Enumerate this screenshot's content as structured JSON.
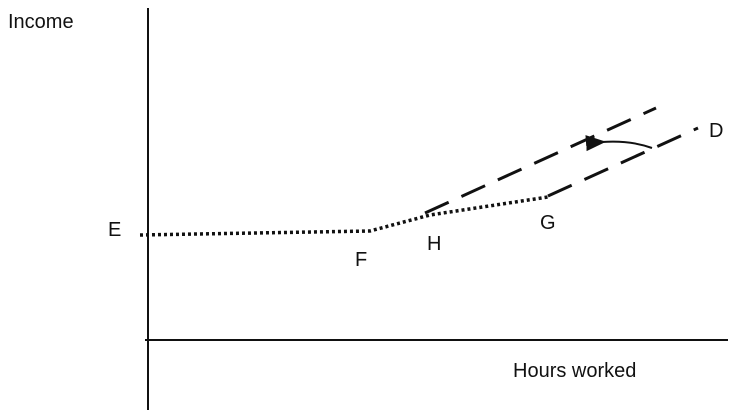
{
  "axes": {
    "y_label": "Income",
    "x_label": "Hours worked"
  },
  "points": [
    {
      "label": "E"
    },
    {
      "label": "F"
    },
    {
      "label": "H"
    },
    {
      "label": "G"
    },
    {
      "label": "D"
    }
  ]
}
